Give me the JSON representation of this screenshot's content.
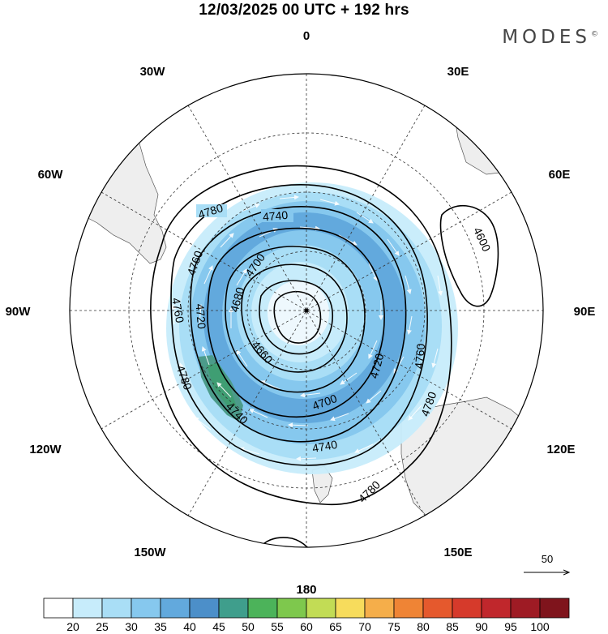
{
  "header": {
    "title": "12/03/2025  00 UTC  + 192 hrs",
    "brand": "MODES",
    "brand_mark": "©"
  },
  "longitudes": [
    {
      "deg": 0,
      "label": "0"
    },
    {
      "deg": 30,
      "label": "30E"
    },
    {
      "deg": 60,
      "label": "60E"
    },
    {
      "deg": 90,
      "label": "90E"
    },
    {
      "deg": 120,
      "label": "120E"
    },
    {
      "deg": 150,
      "label": "150E"
    },
    {
      "deg": 180,
      "label": "180"
    },
    {
      "deg": -150,
      "label": "150W"
    },
    {
      "deg": -120,
      "label": "120W"
    },
    {
      "deg": -90,
      "label": "90W"
    },
    {
      "deg": -60,
      "label": "60W"
    },
    {
      "deg": -30,
      "label": "30W"
    }
  ],
  "contours": [
    {
      "value": "4780",
      "labels": [
        "4780",
        "4780",
        "4780",
        "4780"
      ]
    },
    {
      "value": "4760",
      "labels": [
        "4760",
        "4760",
        "4760"
      ]
    },
    {
      "value": "4740",
      "labels": [
        "4740",
        "4740",
        "4740"
      ]
    },
    {
      "value": "4720",
      "labels": [
        "4720",
        "4720"
      ]
    },
    {
      "value": "4700",
      "labels": [
        "4700",
        "4700"
      ]
    },
    {
      "value": "4680",
      "labels": [
        "4680"
      ]
    },
    {
      "value": "4660",
      "labels": [
        "4660"
      ]
    },
    {
      "value": "4600",
      "labels": [
        "4600"
      ]
    }
  ],
  "wind_scale": {
    "label": "50"
  },
  "colorbar": {
    "ticks": [
      "20",
      "25",
      "30",
      "35",
      "40",
      "45",
      "50",
      "55",
      "60",
      "65",
      "70",
      "75",
      "80",
      "85",
      "90",
      "95",
      "100"
    ],
    "colors": [
      "#ffffff",
      "#c7ecfb",
      "#a9def6",
      "#86c8ee",
      "#62a9dd",
      "#4c8fc9",
      "#3f9e8c",
      "#4cb35a",
      "#7ec84d",
      "#c2dc55",
      "#f7dc5c",
      "#f5ae4a",
      "#ef8435",
      "#e5592d",
      "#d63a2b",
      "#c0272c",
      "#9e1b24",
      "#7f141c"
    ]
  }
}
